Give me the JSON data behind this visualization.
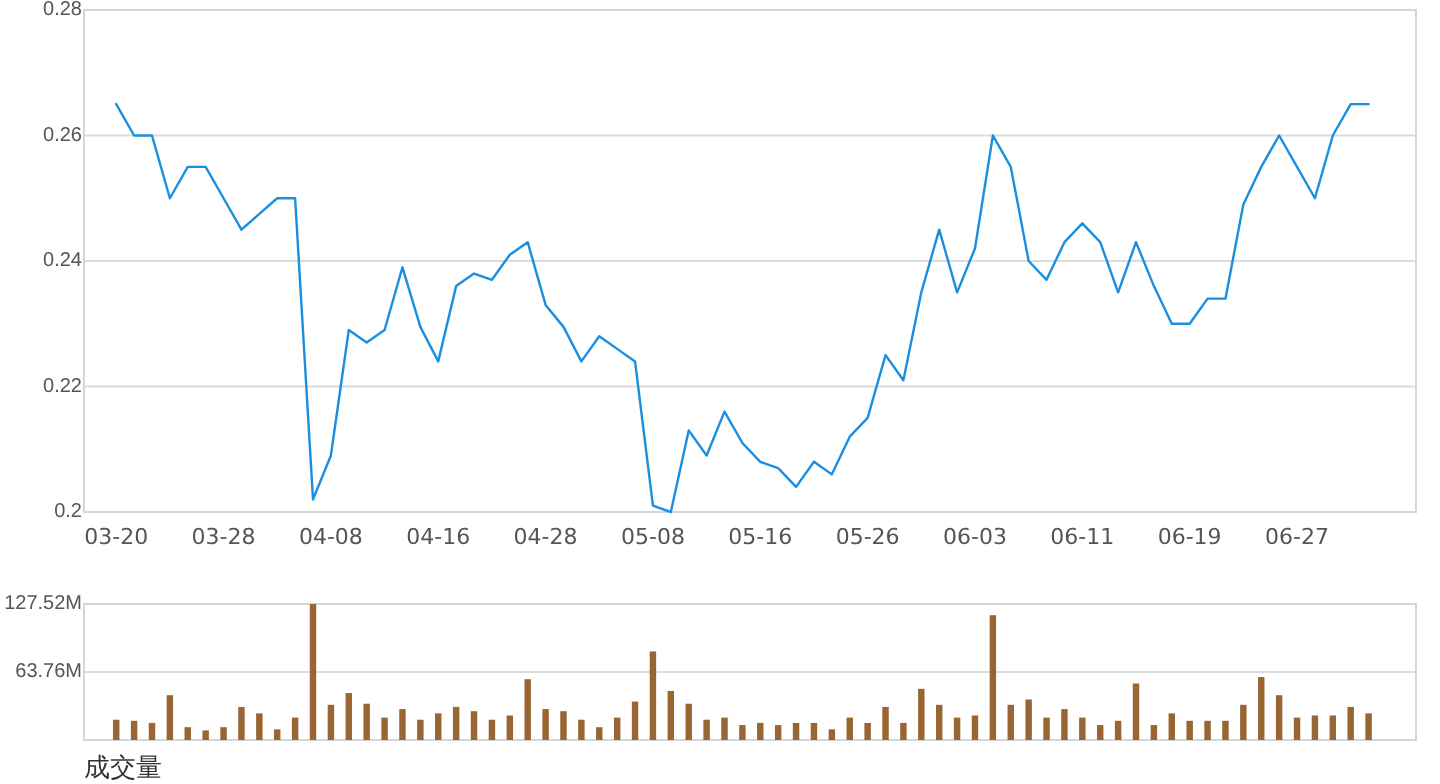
{
  "chart_data": [
    {
      "type": "line",
      "categories": [
        "03-20",
        null,
        null,
        null,
        null,
        null,
        "03-28",
        null,
        null,
        null,
        null,
        null,
        "04-08",
        null,
        null,
        null,
        null,
        null,
        "04-16",
        null,
        null,
        null,
        null,
        null,
        "04-28",
        null,
        null,
        null,
        null,
        null,
        "05-08",
        null,
        null,
        null,
        null,
        null,
        "05-16",
        null,
        null,
        null,
        null,
        null,
        "05-26",
        null,
        null,
        null,
        null,
        null,
        "06-03",
        null,
        null,
        null,
        null,
        null,
        "06-11",
        null,
        null,
        null,
        null,
        null,
        "06-19",
        null,
        null,
        null,
        null,
        null,
        "06-27",
        null,
        null,
        null,
        null
      ],
      "series": [
        {
          "color": "#1a8fe0",
          "values": [
            0.265,
            0.26,
            0.26,
            0.25,
            0.255,
            0.255,
            0.25,
            0.245,
            0.2475,
            0.25,
            0.25,
            0.202,
            0.209,
            0.229,
            0.227,
            0.229,
            0.239,
            0.2295,
            0.224,
            0.236,
            0.238,
            0.237,
            0.241,
            0.243,
            0.233,
            0.2295,
            0.224,
            0.228,
            0.226,
            0.224,
            0.201,
            0.2,
            0.213,
            0.209,
            0.216,
            0.211,
            0.208,
            0.207,
            0.204,
            0.208,
            0.206,
            0.212,
            0.215,
            0.225,
            0.221,
            0.235,
            0.245,
            0.235,
            0.242,
            0.26,
            0.255,
            0.24,
            0.237,
            0.243,
            0.246,
            0.243,
            0.235,
            0.243,
            0.236,
            0.23,
            0.23,
            0.234,
            0.234,
            0.249,
            0.255,
            0.26,
            0.255,
            0.25,
            0.26,
            0.265,
            0.265
          ]
        }
      ],
      "ylim": [
        0.2,
        0.28
      ],
      "yticks": [
        0.2,
        0.22,
        0.24,
        0.26,
        0.28
      ],
      "grid": "y"
    },
    {
      "type": "bar",
      "categories": [
        null,
        null,
        null,
        null,
        null,
        null,
        null,
        null,
        null,
        null,
        null,
        null,
        null,
        null,
        null,
        null,
        null,
        null,
        null,
        null,
        null,
        null,
        null,
        null,
        null,
        null,
        null,
        null,
        null,
        null,
        null,
        null,
        null,
        null,
        null,
        null,
        null,
        null,
        null,
        null,
        null,
        null,
        null,
        null,
        null,
        null,
        null,
        null,
        null,
        null,
        null,
        null,
        null,
        null,
        null,
        null,
        null,
        null,
        null,
        null,
        null,
        null,
        null,
        null,
        null,
        null,
        null,
        null,
        null,
        null,
        null
      ],
      "series": [
        {
          "color": "#996633",
          "values": [
            19,
            18,
            16,
            42,
            12,
            9,
            12,
            31,
            25,
            10,
            21,
            127.52,
            33,
            44,
            34,
            21,
            29,
            19,
            25,
            31,
            27,
            19,
            23,
            57,
            29,
            27,
            19,
            12,
            21,
            36,
            83,
            46,
            34,
            19,
            21,
            14,
            16,
            14,
            16,
            16,
            10,
            21,
            16,
            31,
            16,
            48,
            33,
            21,
            23,
            117,
            33,
            38,
            21,
            29,
            21,
            14,
            18,
            53,
            14,
            25,
            18,
            18,
            18,
            33,
            59,
            42,
            21,
            23,
            23,
            31,
            25
          ]
        }
      ],
      "ylim": [
        0,
        127.52
      ],
      "yticks": [
        {
          "value": 63.76,
          "label": "63.76M"
        },
        {
          "value": 127.52,
          "label": "127.52M"
        }
      ],
      "grid": "y",
      "xlabel": "成交量"
    }
  ]
}
